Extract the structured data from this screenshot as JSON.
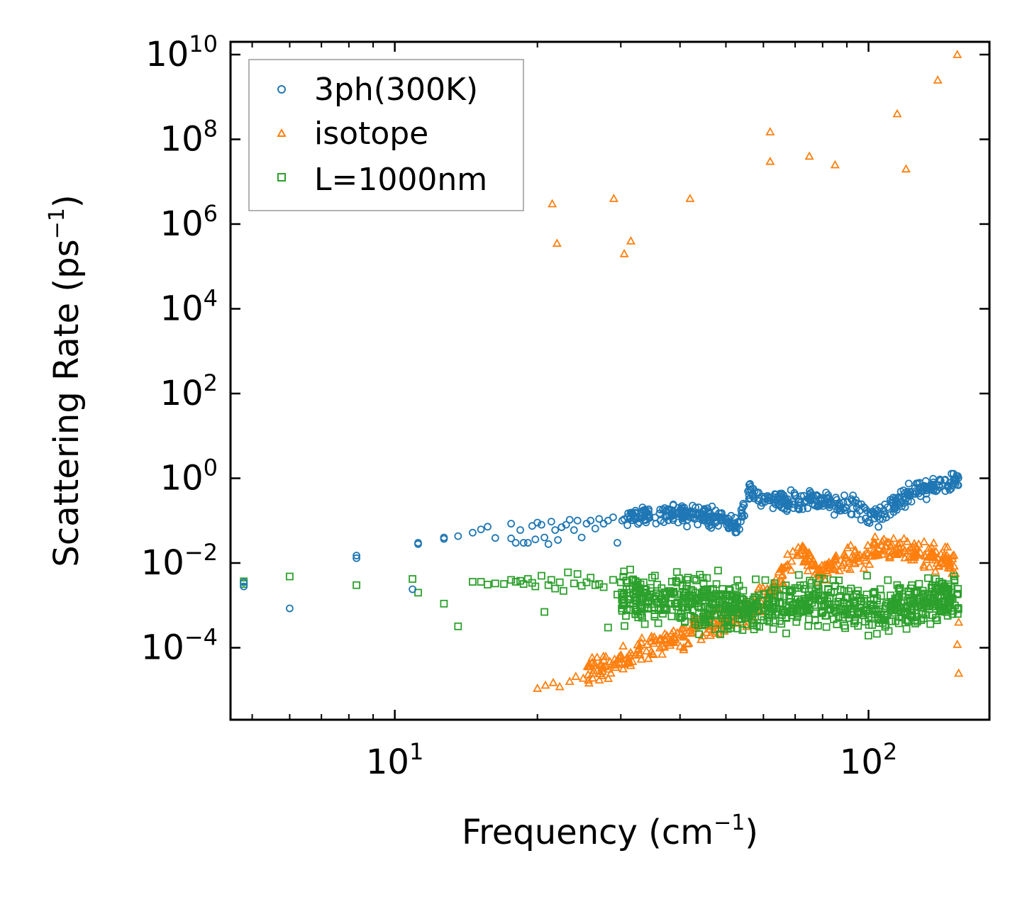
{
  "chart_data": {
    "type": "scatter",
    "title": "",
    "xlabel": "Frequency (cm",
    "xlabel_sup": "−1",
    "xlabel_end": ")",
    "ylabel": "Scattering Rate (ps",
    "ylabel_sup": "−1",
    "ylabel_end": ")",
    "xscale": "log",
    "yscale": "log",
    "xlim": [
      4.5,
      180
    ],
    "ylim": [
      2e-06,
      20000000000
    ],
    "x_ticks": [
      {
        "value": 10,
        "base": "10",
        "exp": "1"
      },
      {
        "value": 100,
        "base": "10",
        "exp": "2"
      }
    ],
    "y_ticks": [
      {
        "value": 0.0001,
        "base": "10",
        "exp": "−4"
      },
      {
        "value": 0.01,
        "base": "10",
        "exp": "−2"
      },
      {
        "value": 1,
        "base": "10",
        "exp": "0"
      },
      {
        "value": 100,
        "base": "10",
        "exp": "2"
      },
      {
        "value": 10000,
        "base": "10",
        "exp": "4"
      },
      {
        "value": 1000000,
        "base": "10",
        "exp": "6"
      },
      {
        "value": 100000000,
        "base": "10",
        "exp": "8"
      },
      {
        "value": 10000000000,
        "base": "10",
        "exp": "10"
      }
    ],
    "legend_position": "top-left",
    "series": [
      {
        "name": "3ph(300K)",
        "marker": "circle",
        "color": "#1f77b4",
        "points": [
          [
            4.8,
            0.0035
          ],
          [
            4.8,
            0.0028
          ],
          [
            6.0,
            0.00085
          ],
          [
            8.3,
            0.015
          ],
          [
            8.3,
            0.013
          ],
          [
            10.9,
            0.0024
          ],
          [
            11.2,
            0.03
          ],
          [
            11.2,
            0.028
          ],
          [
            12.7,
            0.04
          ],
          [
            12.7,
            0.037
          ],
          [
            13.6,
            0.043
          ],
          [
            14.6,
            0.052
          ],
          [
            15.2,
            0.062
          ],
          [
            15.7,
            0.072
          ],
          [
            16.3,
            0.039
          ],
          [
            17.6,
            0.085
          ],
          [
            17.6,
            0.038
          ],
          [
            18.0,
            0.03
          ],
          [
            18.4,
            0.06
          ],
          [
            18.7,
            0.03
          ],
          [
            19.1,
            0.03
          ],
          [
            19.5,
            0.075
          ],
          [
            19.8,
            0.036
          ],
          [
            20.0,
            0.09
          ],
          [
            20.4,
            0.08
          ],
          [
            20.7,
            0.04
          ],
          [
            21.1,
            0.028
          ],
          [
            21.4,
            0.095
          ],
          [
            21.8,
            0.06
          ],
          [
            22.1,
            0.035
          ],
          [
            22.5,
            0.07
          ],
          [
            23.0,
            0.08
          ],
          [
            23.4,
            0.105
          ],
          [
            23.9,
            0.06
          ],
          [
            24.3,
            0.1
          ],
          [
            24.8,
            0.04
          ],
          [
            25.4,
            0.085
          ],
          [
            25.9,
            0.1
          ],
          [
            26.5,
            0.065
          ],
          [
            27.0,
            0.11
          ],
          [
            27.6,
            0.085
          ],
          [
            28.2,
            0.1
          ],
          [
            28.9,
            0.12
          ],
          [
            29.5,
            0.03
          ],
          [
            30.2,
            0.1
          ]
        ],
        "band": {
          "x_from": 30.5,
          "x_to": 155,
          "count": 520,
          "y_knots": [
            [
              30,
              0.11
            ],
            [
              38,
              0.15
            ],
            [
              46,
              0.13
            ],
            [
              53,
              0.08
            ],
            [
              56,
              0.5
            ],
            [
              60,
              0.35
            ],
            [
              68,
              0.25
            ],
            [
              76,
              0.35
            ],
            [
              84,
              0.25
            ],
            [
              95,
              0.18
            ],
            [
              104,
              0.12
            ],
            [
              118,
              0.35
            ],
            [
              135,
              0.65
            ],
            [
              155,
              0.9
            ]
          ],
          "spread_decades": 0.22
        }
      },
      {
        "name": "isotope",
        "marker": "triangle",
        "color": "#ff7f0e",
        "points": [
          [
            21.5,
            3000000
          ],
          [
            22.0,
            350000
          ],
          [
            29.0,
            4000000
          ],
          [
            30.5,
            200000
          ],
          [
            31.5,
            400000
          ],
          [
            42.0,
            4000000
          ],
          [
            62.0,
            150000000
          ],
          [
            62.0,
            30000000
          ],
          [
            75.0,
            40000000
          ],
          [
            85.0,
            25000000
          ],
          [
            115.0,
            400000000
          ],
          [
            120.0,
            20000000
          ],
          [
            140.0,
            2500000000
          ],
          [
            154.0,
            10000000000
          ],
          [
            20.0,
            1.1e-05
          ],
          [
            20.8,
            1.3e-05
          ],
          [
            21.6,
            1.5e-05
          ],
          [
            22.3,
            1.2e-05
          ],
          [
            23.4,
            1.6e-05
          ],
          [
            24.1,
            2.1e-05
          ],
          [
            25.0,
            1.9e-05
          ],
          [
            26.2,
            2.5e-05
          ],
          [
            27.4,
            2.2e-05
          ],
          [
            155.0,
            2.5e-05
          ],
          [
            154.0,
            0.00012
          ],
          [
            155.0,
            0.0004
          ]
        ],
        "band": {
          "x_from": 25.5,
          "x_to": 153,
          "count": 460,
          "y_knots": [
            [
              25.5,
              3e-05
            ],
            [
              30,
              5e-05
            ],
            [
              36,
              0.00012
            ],
            [
              45,
              0.0003
            ],
            [
              55,
              0.0006
            ],
            [
              62,
              0.002
            ],
            [
              68,
              0.01
            ],
            [
              72,
              0.02
            ],
            [
              80,
              0.006
            ],
            [
              90,
              0.012
            ],
            [
              100,
              0.02
            ],
            [
              112,
              0.025
            ],
            [
              125,
              0.02
            ],
            [
              140,
              0.015
            ],
            [
              153,
              0.008
            ]
          ],
          "spread_decades": 0.3
        }
      },
      {
        "name": "L=1000nm",
        "marker": "square",
        "color": "#2ca02c",
        "points": [
          [
            4.8,
            0.0037
          ],
          [
            4.8,
            0.0032
          ],
          [
            6.0,
            0.0048
          ],
          [
            8.3,
            0.003
          ],
          [
            10.9,
            0.0042
          ],
          [
            11.2,
            0.002
          ],
          [
            12.7,
            0.0011
          ],
          [
            13.6,
            0.00032
          ],
          [
            14.6,
            0.0036
          ],
          [
            15.2,
            0.0036
          ],
          [
            15.7,
            0.0031
          ],
          [
            16.3,
            0.0033
          ],
          [
            17.0,
            0.0032
          ],
          [
            17.6,
            0.004
          ],
          [
            18.0,
            0.0036
          ],
          [
            18.4,
            0.0038
          ],
          [
            18.7,
            0.0032
          ],
          [
            19.1,
            0.0042
          ],
          [
            19.5,
            0.0034
          ],
          [
            19.8,
            0.0028
          ],
          [
            20.4,
            0.005
          ],
          [
            20.7,
            0.0007
          ],
          [
            21.1,
            0.003
          ],
          [
            21.4,
            0.004
          ],
          [
            21.8,
            0.0025
          ],
          [
            22.3,
            0.0035
          ],
          [
            22.7,
            0.0022
          ],
          [
            23.2,
            0.006
          ],
          [
            23.9,
            0.0033
          ],
          [
            24.3,
            0.0055
          ],
          [
            24.8,
            0.0029
          ],
          [
            25.4,
            0.0035
          ],
          [
            25.9,
            0.0045
          ],
          [
            26.5,
            0.003
          ],
          [
            27.0,
            0.0032
          ],
          [
            27.6,
            0.0027
          ],
          [
            28.2,
            0.0003
          ],
          [
            28.9,
            0.004
          ],
          [
            29.5,
            0.0018
          ],
          [
            30.0,
            0.0035
          ]
        ],
        "band": {
          "x_from": 30,
          "x_to": 155,
          "count": 820,
          "y_knots": [
            [
              30,
              0.0015
            ],
            [
              40,
              0.0012
            ],
            [
              50,
              0.001
            ],
            [
              60,
              0.0008
            ],
            [
              75,
              0.0012
            ],
            [
              90,
              0.001
            ],
            [
              105,
              0.0008
            ],
            [
              125,
              0.0012
            ],
            [
              155,
              0.0015
            ]
          ],
          "spread_decades": 0.55
        }
      }
    ]
  }
}
